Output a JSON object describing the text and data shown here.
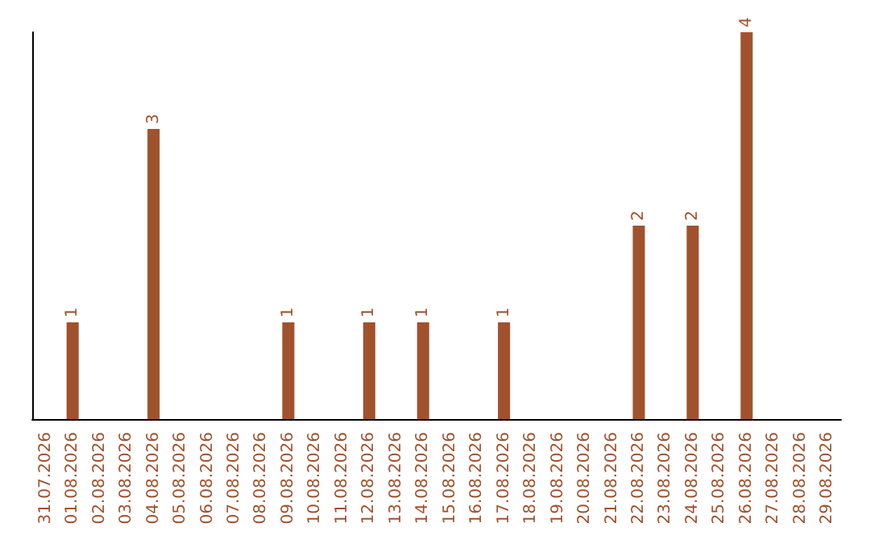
{
  "chart_data": {
    "type": "bar",
    "categories": [
      "31.07.2026",
      "01.08.2026",
      "02.08.2026",
      "03.08.2026",
      "04.08.2026",
      "05.08.2026",
      "06.08.2026",
      "07.08.2026",
      "08.08.2026",
      "09.08.2026",
      "10.08.2026",
      "11.08.2026",
      "12.08.2026",
      "13.08.2026",
      "14.08.2026",
      "15.08.2026",
      "16.08.2026",
      "17.08.2026",
      "18.08.2026",
      "19.08.2026",
      "20.08.2026",
      "21.08.2026",
      "22.08.2026",
      "23.08.2026",
      "24.08.2026",
      "25.08.2026",
      "26.08.2026",
      "27.08.2026",
      "28.08.2026",
      "29.08.2026"
    ],
    "values": [
      0,
      1,
      0,
      0,
      3,
      0,
      0,
      0,
      0,
      1,
      0,
      0,
      1,
      0,
      1,
      0,
      0,
      1,
      0,
      0,
      0,
      0,
      2,
      0,
      2,
      0,
      4,
      0,
      0,
      0
    ],
    "value_labels": [
      null,
      "1",
      null,
      null,
      "3",
      null,
      null,
      null,
      null,
      "1",
      null,
      null,
      "1",
      null,
      "1",
      null,
      null,
      "1",
      null,
      null,
      null,
      null,
      "2",
      null,
      "2",
      null,
      "4",
      null,
      null,
      null
    ],
    "color": "#a0522d",
    "tick_labels": "x"
  }
}
